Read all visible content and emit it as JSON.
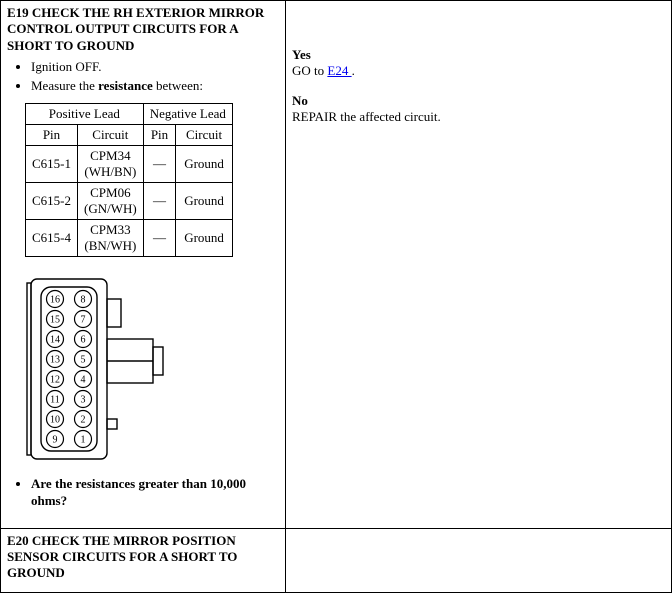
{
  "step_e19": {
    "title": "E19 CHECK THE RH EXTERIOR MIRROR CONTROL OUTPUT CIRCUITS FOR A SHORT TO GROUND",
    "bullets": {
      "b1": "Ignition OFF.",
      "b2_pre": "Measure the ",
      "b2_bold": "resistance",
      "b2_post": " between:"
    },
    "lead_table": {
      "hdr_pos": "Positive Lead",
      "hdr_neg": "Negative Lead",
      "sub_pin": "Pin",
      "sub_circuit": "Circuit",
      "rows": [
        {
          "ppin": "C615-1",
          "pcir1": "CPM34",
          "pcir2": "(WH/BN)",
          "npin": "—",
          "ncir": "Ground"
        },
        {
          "ppin": "C615-2",
          "pcir1": "CPM06",
          "pcir2": "(GN/WH)",
          "npin": "—",
          "ncir": "Ground"
        },
        {
          "ppin": "C615-4",
          "pcir1": "CPM33",
          "pcir2": "(BN/WH)",
          "npin": "—",
          "ncir": "Ground"
        }
      ]
    },
    "connector": {
      "pins_left": [
        "16",
        "15",
        "14",
        "13",
        "12",
        "11",
        "10",
        "9"
      ],
      "pins_right": [
        "8",
        "7",
        "6",
        "5",
        "4",
        "3",
        "2",
        "1"
      ]
    },
    "question": "Are the resistances greater than 10,000 ohms?",
    "result": {
      "yes_label": "Yes",
      "yes_action_pre": "GO to ",
      "yes_link": "E24 ",
      "yes_action_post": ".",
      "no_label": "No",
      "no_action": "REPAIR the affected circuit."
    }
  },
  "step_e20": {
    "title": "E20 CHECK THE MIRROR POSITION SENSOR CIRCUITS FOR A SHORT TO GROUND"
  },
  "style": {
    "link_color": "#0000EE",
    "border_color": "#000000",
    "font_family": "Times New Roman",
    "base_font_size_pt": 10
  }
}
